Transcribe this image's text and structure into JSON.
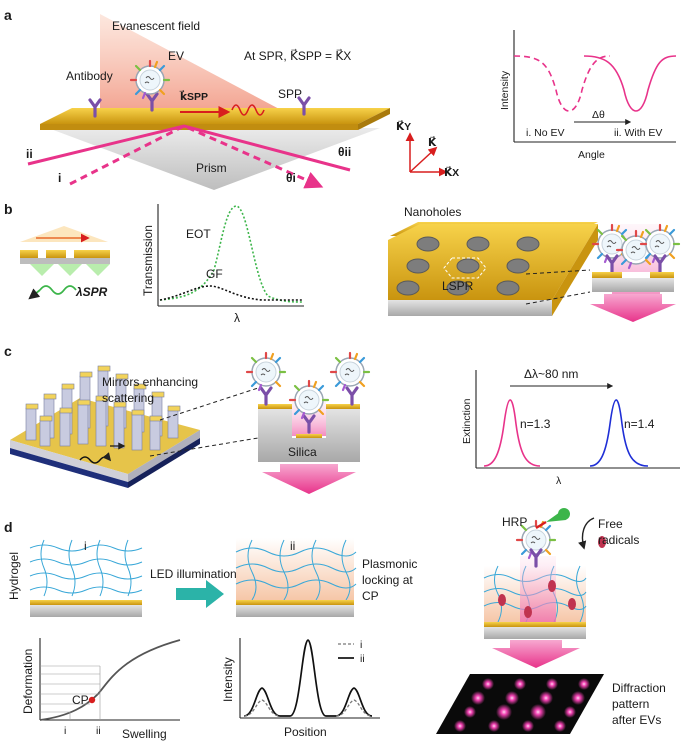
{
  "colors": {
    "gold": "#e8b21a",
    "gold_dark": "#b8860b",
    "magenta": "#e83e8c",
    "pink_arrow": "#f06fb0",
    "green": "#3cb54a",
    "blue": "#1f2fd6",
    "teal": "#2bb3a8",
    "hydrogel_blue": "#3aa8d8",
    "antibody": "#7b4fa8",
    "red_particle": "#c0334f"
  },
  "panel_a": {
    "label": "a",
    "evanescent_field": "Evanescent field",
    "ev": "EV",
    "antibody": "Antibody",
    "spr_condition": "At SPR, K⃗SPP = K⃗X",
    "kspp": "k⃗SPP",
    "spp": "SPP",
    "prism": "Prism",
    "beam_ii": "ii",
    "beam_i": "i",
    "theta_ii": "θii",
    "theta_i": "θi",
    "axis_y": "K⃗Y",
    "axis_k": "K⃗",
    "axis_x": "K⃗X",
    "chart": {
      "ylabel": "Intensity",
      "xlabel": "Angle",
      "delta": "Δθ",
      "no_ev": "i. No EV",
      "with_ev": "ii. With EV"
    }
  },
  "panel_b": {
    "label": "b",
    "lambda_spr": "λSPR",
    "chart": {
      "ylabel": "Transmission",
      "xlabel": "λ",
      "eot": "EOT",
      "gf": "GF"
    },
    "nanoholes": "Nanoholes",
    "lspr": "LSPR"
  },
  "panel_c": {
    "label": "c",
    "mirrors": "Mirrors enhancing scattering",
    "silica": "Silica",
    "chart": {
      "ylabel": "Extinction",
      "xlabel": "λ",
      "delta": "Δλ~80 nm",
      "n1": "n=1.3",
      "n2": "n=1.4"
    }
  },
  "panel_d": {
    "label": "d",
    "hydrogel": "Hydrogel",
    "state_i": "i",
    "state_ii": "ii",
    "led": "LED illumination",
    "locking": "Plasmonic locking at CP",
    "hrp": "HRP",
    "free_radicals": "Free radicals",
    "diffraction": "Diffraction pattern after EVs",
    "chart1": {
      "ylabel": "Deformation",
      "xlabel": "Swelling",
      "cp": "CP",
      "tick_i": "i",
      "tick_ii": "ii"
    },
    "chart2": {
      "ylabel": "Intensity",
      "xlabel": "Position",
      "legend_i": "i",
      "legend_ii": "ii"
    }
  }
}
